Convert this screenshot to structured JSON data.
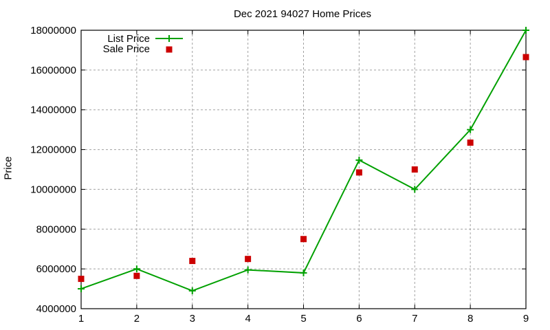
{
  "chart_data": {
    "type": "line",
    "title": "Dec 2021 94027 Home Prices",
    "xlabel": "",
    "ylabel": "Price",
    "x": [
      1,
      2,
      3,
      4,
      5,
      6,
      7,
      8,
      9
    ],
    "xticks": [
      "1",
      "2",
      "3",
      "4",
      "5",
      "6",
      "7",
      "8",
      "9"
    ],
    "yticks": [
      "4000000",
      "6000000",
      "8000000",
      "10000000",
      "12000000",
      "14000000",
      "16000000",
      "18000000"
    ],
    "xlim": [
      1,
      9
    ],
    "ylim": [
      4000000,
      18000000
    ],
    "grid": true,
    "legend_position": "top-left",
    "series": [
      {
        "name": "List Price",
        "style": "linespoints",
        "marker": "plus",
        "color": "#00a000",
        "values": [
          5000000,
          6000000,
          4900000,
          5950000,
          5800000,
          11470000,
          10000000,
          13000000,
          18000000
        ]
      },
      {
        "name": "Sale Price",
        "style": "points",
        "marker": "square",
        "color": "#cc0000",
        "values": [
          5500000,
          5650000,
          6400000,
          6500000,
          7500000,
          10850000,
          11000000,
          12350000,
          16650000
        ]
      }
    ]
  }
}
